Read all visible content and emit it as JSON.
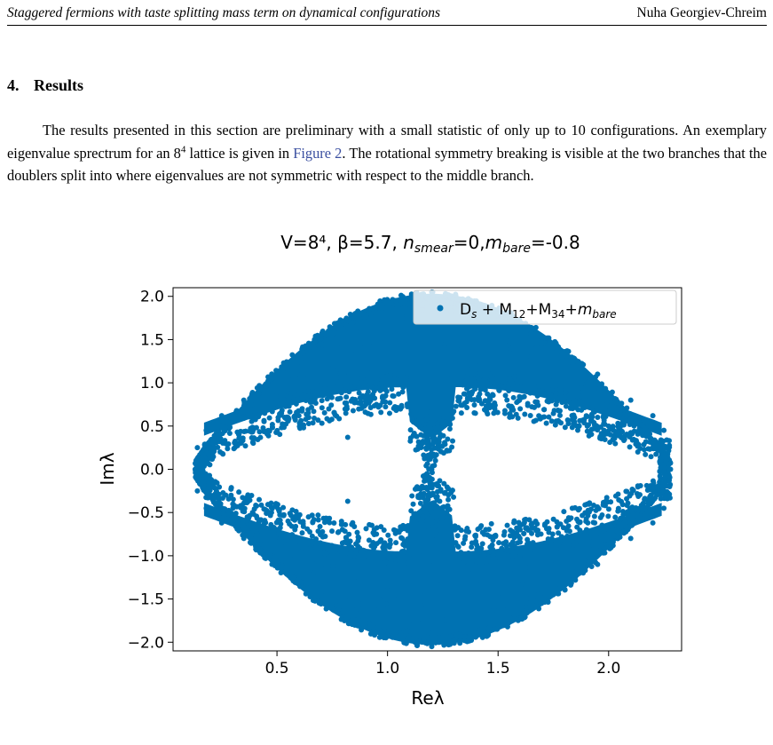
{
  "header": {
    "running_title": "Staggered fermions with taste splitting mass term on dynamical configurations",
    "author": "Nuha Georgiev-Chreim"
  },
  "section": {
    "number": "4.",
    "title": "Results"
  },
  "paragraph": {
    "text_1": "The results presented in this section are preliminary with a small statistic of only up to 10 configurations. An exemplary eigenvalue sprectrum for an 8",
    "exponent": "4",
    "text_2": " lattice is given in ",
    "figure_ref": "Figure 2",
    "text_3": ". The rotational symmetry breaking is visible at the two branches that the doublers split into where eigenvalues are not symmetric with respect to the middle branch."
  },
  "colors": {
    "points": "#0072b2",
    "axes": "#000000",
    "link": "#3a4fa0"
  },
  "chart_data": {
    "type": "scatter",
    "title_parts": [
      "V=8⁴, β=5.7, ",
      "n",
      "smear",
      "=0,",
      "m",
      "bare",
      "=-0.8"
    ],
    "xlabel": "Reλ",
    "ylabel": "Imλ",
    "xlim": [
      0.03,
      2.33
    ],
    "ylim": [
      -2.1,
      2.1
    ],
    "x_ticks": [
      0.5,
      1.0,
      1.5,
      2.0
    ],
    "y_ticks": [
      2.0,
      1.5,
      1.0,
      0.5,
      0.0,
      -0.5,
      -1.0,
      -1.5,
      -2.0
    ],
    "x_tick_labels": [
      "0.5",
      "1.0",
      "1.5",
      "2.0"
    ],
    "y_tick_labels": [
      "2.0",
      "1.5",
      "1.0",
      "0.5",
      "0.0",
      "−0.5",
      "−1.0",
      "−1.5",
      "−2.0"
    ],
    "legend_parts": [
      "D",
      "s",
      " + M",
      "12",
      "+M",
      "34",
      "+",
      "m",
      "bare"
    ],
    "legend_location": "upper right",
    "grid": false,
    "series": [
      {
        "marker": "point",
        "points": [
          [
            0.13,
            0.0
          ],
          [
            0.14,
            0.25
          ],
          [
            0.14,
            -0.25
          ],
          [
            0.18,
            0.45
          ],
          [
            0.18,
            -0.45
          ],
          [
            0.25,
            0.62
          ],
          [
            0.25,
            -0.62
          ],
          [
            0.35,
            0.8
          ],
          [
            0.35,
            -0.8
          ],
          [
            0.5,
            1.1
          ],
          [
            0.5,
            -1.1
          ],
          [
            0.7,
            1.45
          ],
          [
            0.7,
            -1.45
          ],
          [
            0.9,
            1.78
          ],
          [
            0.9,
            -1.78
          ],
          [
            1.2,
            2.05
          ],
          [
            1.2,
            -2.05
          ],
          [
            1.5,
            1.8
          ],
          [
            1.5,
            -1.8
          ],
          [
            1.75,
            1.45
          ],
          [
            1.75,
            -1.45
          ],
          [
            1.95,
            1.1
          ],
          [
            1.95,
            -1.1
          ],
          [
            2.1,
            0.8
          ],
          [
            2.1,
            -0.8
          ],
          [
            2.2,
            0.62
          ],
          [
            2.2,
            -0.62
          ],
          [
            2.25,
            0.45
          ],
          [
            2.25,
            -0.45
          ],
          [
            2.28,
            0.0
          ],
          [
            1.2,
            0.0
          ],
          [
            1.18,
            0.35
          ],
          [
            1.18,
            -0.35
          ],
          [
            0.82,
            0.37
          ],
          [
            0.82,
            -0.37
          ],
          [
            0.55,
            0.6
          ],
          [
            0.55,
            -0.6
          ],
          [
            0.95,
            0.75
          ],
          [
            0.95,
            -0.75
          ],
          [
            1.6,
            0.7
          ],
          [
            1.6,
            -0.7
          ],
          [
            1.0,
            1.4
          ],
          [
            1.0,
            -1.4
          ],
          [
            1.4,
            1.2
          ],
          [
            1.4,
            -1.2
          ]
        ]
      }
    ]
  },
  "caption_stub": ""
}
